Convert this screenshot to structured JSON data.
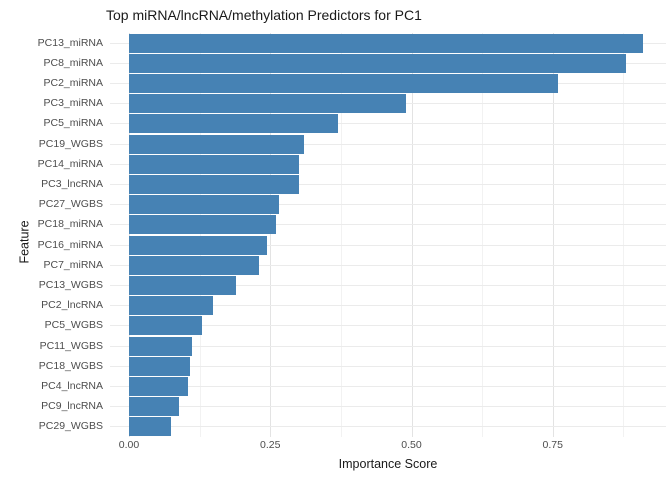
{
  "title": "Top miRNA/lncRNA/methylation Predictors for PC1",
  "chart_data": {
    "type": "bar",
    "orientation": "horizontal",
    "title": "Top miRNA/lncRNA/methylation Predictors for PC1",
    "xlabel": "Importance Score",
    "ylabel": "Feature",
    "categories": [
      "PC13_miRNA",
      "PC8_miRNA",
      "PC2_miRNA",
      "PC3_miRNA",
      "PC5_miRNA",
      "PC19_WGBS",
      "PC14_miRNA",
      "PC3_lncRNA",
      "PC27_WGBS",
      "PC18_miRNA",
      "PC16_miRNA",
      "PC7_miRNA",
      "PC13_WGBS",
      "PC2_lncRNA",
      "PC5_WGBS",
      "PC11_WGBS",
      "PC18_WGBS",
      "PC4_lncRNA",
      "PC9_lncRNA",
      "PC29_WGBS"
    ],
    "values": [
      0.91,
      0.88,
      0.76,
      0.49,
      0.37,
      0.31,
      0.3,
      0.3,
      0.265,
      0.26,
      0.245,
      0.23,
      0.19,
      0.148,
      0.13,
      0.112,
      0.108,
      0.104,
      0.089,
      0.074
    ],
    "x_tick_values": [
      0,
      0.25,
      0.5,
      0.75
    ],
    "x_tick_labels": [
      "0.00",
      "0.25",
      "0.50",
      "0.75"
    ],
    "x_minor_grid_values": [
      0.125,
      0.375,
      0.625,
      0.875
    ],
    "xlim": [
      0,
      0.95
    ],
    "grid": true,
    "legend": false,
    "bar_color": "#4682B4",
    "background_color": "#ffffff",
    "major_grid_color": "#e3e3e3",
    "minor_grid_color": "#f2f2f2",
    "row_grid_color": "#ebebeb",
    "tick_text_color": "#4d4d4d",
    "text_color": "#1a1a1a"
  }
}
